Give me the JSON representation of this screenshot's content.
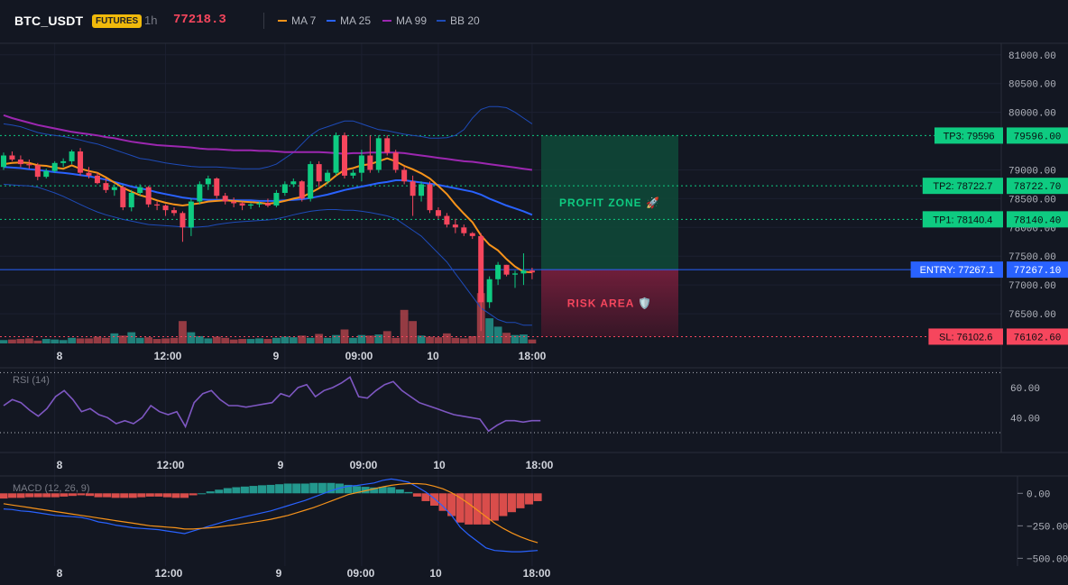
{
  "header": {
    "symbol": "BTC_USDT",
    "market_badge": "FUTURES",
    "timeframe": "1h",
    "last_price": "77218.3",
    "legends": [
      {
        "name": "MA 7",
        "color": "#f7931a"
      },
      {
        "name": "MA 25",
        "color": "#2962ff"
      },
      {
        "name": "MA 99",
        "color": "#9c27b0"
      },
      {
        "name": "BB 20",
        "color": "#1e4bb8"
      }
    ]
  },
  "colors": {
    "background": "#131722",
    "up": "#0ecb81",
    "down": "#f6465d",
    "up_volume": "#26a69a",
    "down_volume": "#c2484f",
    "profit": "#0ecb81",
    "loss": "#f6465d",
    "entry": "#2962ff",
    "rsi": "#7e57c2",
    "macd": "#2962ff",
    "signal": "#f7931a",
    "hist_pos": "#26a69a",
    "hist_neg": "#ef5350"
  },
  "x_labels": [
    "8",
    "12:00",
    "9",
    "09:00",
    "10",
    "18:00"
  ],
  "price_axis": {
    "ticks": [
      "81000.00",
      "80500.00",
      "80000.00",
      "79000.00",
      "78500.00",
      "78000.00",
      "77500.00",
      "77000.00",
      "76500.00"
    ],
    "ylim": [
      76000,
      81200
    ]
  },
  "zones": {
    "profit_label": "PROFIT ZONE 🚀",
    "risk_label": "RISK AREA 🛡️"
  },
  "levels": [
    {
      "kind": "tp3",
      "label": "TP3: 79596",
      "value_label": "79596.00",
      "price": 79596
    },
    {
      "kind": "tp2",
      "label": "TP2: 78722.7",
      "value_label": "78722.70",
      "price": 78722.7
    },
    {
      "kind": "tp1",
      "label": "TP1: 78140.4",
      "value_label": "78140.40",
      "price": 78140.4
    },
    {
      "kind": "entry",
      "label": "ENTRY: 77267.1",
      "value_label": "77267.10",
      "price": 77267.1
    },
    {
      "kind": "sl",
      "label": "SL: 76102.6",
      "value_label": "76102.60",
      "price": 76102.6
    }
  ],
  "rsi": {
    "title": "RSI (14)",
    "ticks": [
      "60.00",
      "40.00"
    ],
    "levels": [
      70,
      30
    ],
    "ylim": [
      18,
      72
    ]
  },
  "macd": {
    "title": "MACD (12, 26, 9)",
    "ticks": [
      "0.00",
      "−250.00",
      "−500.00"
    ],
    "ylim": [
      -560,
      120
    ]
  },
  "chart_data": {
    "type": "candlestick",
    "candles": [
      [
        79050,
        79300,
        79000,
        79250
      ],
      [
        79250,
        79320,
        79150,
        79180
      ],
      [
        79180,
        79250,
        79050,
        79100
      ],
      [
        79100,
        79180,
        79020,
        79080
      ],
      [
        79080,
        79120,
        78820,
        78880
      ],
      [
        78880,
        79020,
        78850,
        78980
      ],
      [
        78980,
        79150,
        78950,
        79120
      ],
      [
        79120,
        79200,
        79050,
        79150
      ],
      [
        79150,
        79350,
        79100,
        79320
      ],
      [
        79320,
        79380,
        78900,
        78950
      ],
      [
        78950,
        79050,
        78850,
        78900
      ],
      [
        78900,
        78950,
        78750,
        78770
      ],
      [
        78770,
        78850,
        78600,
        78650
      ],
      [
        78650,
        78750,
        78550,
        78700
      ],
      [
        78700,
        78720,
        78300,
        78350
      ],
      [
        78350,
        78650,
        78280,
        78600
      ],
      [
        78600,
        78750,
        78550,
        78700
      ],
      [
        78700,
        78720,
        78350,
        78400
      ],
      [
        78400,
        78450,
        78300,
        78380
      ],
      [
        78380,
        78400,
        78200,
        78300
      ],
      [
        78300,
        78350,
        78200,
        78250
      ],
      [
        78250,
        78280,
        77750,
        78000
      ],
      [
        78000,
        78500,
        77850,
        78450
      ],
      [
        78450,
        78800,
        78400,
        78750
      ],
      [
        78750,
        78900,
        78650,
        78850
      ],
      [
        78850,
        78870,
        78500,
        78550
      ],
      [
        78550,
        78600,
        78400,
        78450
      ],
      [
        78450,
        78520,
        78350,
        78420
      ],
      [
        78420,
        78450,
        78300,
        78380
      ],
      [
        78380,
        78420,
        78320,
        78400
      ],
      [
        78400,
        78450,
        78350,
        78420
      ],
      [
        78420,
        78500,
        78350,
        78380
      ],
      [
        78380,
        78650,
        78350,
        78600
      ],
      [
        78600,
        78800,
        78550,
        78750
      ],
      [
        78750,
        78850,
        78700,
        78800
      ],
      [
        78800,
        78820,
        78450,
        78500
      ],
      [
        78500,
        79150,
        78450,
        79100
      ],
      [
        79100,
        79150,
        78700,
        78800
      ],
      [
        78800,
        79000,
        78750,
        78950
      ],
      [
        78950,
        79650,
        78900,
        79600
      ],
      [
        79600,
        79650,
        78850,
        78900
      ],
      [
        78900,
        79000,
        78850,
        78950
      ],
      [
        78950,
        79350,
        78800,
        79250
      ],
      [
        79250,
        79600,
        78950,
        79000
      ],
      [
        79000,
        79600,
        78950,
        79550
      ],
      [
        79550,
        79600,
        79250,
        79300
      ],
      [
        79300,
        79350,
        78950,
        79000
      ],
      [
        79000,
        79050,
        78750,
        78800
      ],
      [
        78800,
        78900,
        78200,
        78550
      ],
      [
        78550,
        78800,
        78450,
        78750
      ],
      [
        78750,
        78800,
        78250,
        78300
      ],
      [
        78300,
        78350,
        78150,
        78200
      ],
      [
        78200,
        78250,
        78000,
        78050
      ],
      [
        78050,
        78150,
        77900,
        78000
      ],
      [
        78000,
        78050,
        77850,
        77900
      ],
      [
        77900,
        77920,
        77800,
        77850
      ],
      [
        77850,
        77900,
        76200,
        76700
      ],
      [
        76700,
        77150,
        76600,
        77100
      ],
      [
        77100,
        77400,
        77000,
        77350
      ],
      [
        77350,
        77350,
        77150,
        77180
      ],
      [
        77180,
        77250,
        76950,
        77200
      ],
      [
        77200,
        77550,
        77000,
        77250
      ],
      [
        77250,
        77300,
        77100,
        77218
      ]
    ],
    "volume": [
      6,
      7,
      8,
      9,
      5,
      8,
      7,
      6,
      10,
      9,
      9,
      12,
      10,
      18,
      14,
      20,
      10,
      11,
      8,
      9,
      10,
      40,
      20,
      13,
      9,
      12,
      10,
      7,
      8,
      8,
      9,
      8,
      10,
      12,
      11,
      14,
      10,
      17,
      10,
      15,
      25,
      10,
      15,
      14,
      16,
      22,
      10,
      60,
      40,
      14,
      12,
      11,
      18,
      10,
      9,
      13,
      90,
      45,
      30,
      19,
      15,
      16,
      7
    ],
    "series": [
      {
        "name": "MA 7",
        "values": [
          79100,
          79120,
          79130,
          79120,
          79080,
          79070,
          79040,
          79020,
          79080,
          79020,
          78980,
          78950,
          78870,
          78780,
          78690,
          78620,
          78560,
          78520,
          78470,
          78430,
          78400,
          78380,
          78400,
          78420,
          78450,
          78460,
          78470,
          78460,
          78450,
          78440,
          78430,
          78410,
          78430,
          78460,
          78500,
          78530,
          78600,
          78680,
          78780,
          78900,
          79000,
          79030,
          79080,
          79100,
          79150,
          79200,
          79150,
          79070,
          79010,
          78940,
          78850,
          78720,
          78580,
          78400,
          78240,
          78090,
          77860,
          77700,
          77600,
          77450,
          77320,
          77230,
          77220
        ]
      },
      {
        "name": "MA 25",
        "values": [
          79050,
          79040,
          79030,
          79010,
          79000,
          78980,
          78960,
          78950,
          78930,
          78910,
          78890,
          78860,
          78830,
          78790,
          78750,
          78710,
          78680,
          78650,
          78610,
          78580,
          78550,
          78520,
          78500,
          78490,
          78480,
          78480,
          78480,
          78470,
          78470,
          78470,
          78460,
          78460,
          78460,
          78470,
          78480,
          78490,
          78510,
          78540,
          78570,
          78610,
          78650,
          78680,
          78710,
          78740,
          78770,
          78790,
          78820,
          78820,
          78800,
          78780,
          78760,
          78740,
          78710,
          78680,
          78650,
          78620,
          78570,
          78500,
          78440,
          78380,
          78330,
          78280,
          78220
        ]
      },
      {
        "name": "MA 99",
        "values": [
          79950,
          79900,
          79860,
          79820,
          79780,
          79750,
          79720,
          79690,
          79660,
          79640,
          79620,
          79600,
          79570,
          79550,
          79520,
          79490,
          79470,
          79450,
          79430,
          79420,
          79410,
          79400,
          79390,
          79370,
          79360,
          79360,
          79350,
          79340,
          79340,
          79340,
          79330,
          79330,
          79320,
          79310,
          79310,
          79310,
          79310,
          79310,
          79300,
          79290,
          79280,
          79290,
          79290,
          79300,
          79300,
          79300,
          79300,
          79290,
          79270,
          79250,
          79230,
          79210,
          79190,
          79170,
          79150,
          79140,
          79120,
          79100,
          79080,
          79060,
          79040,
          79020,
          79000
        ]
      },
      {
        "name": "BB 20",
        "values": [
          79800,
          79780,
          79750,
          79700,
          79650,
          79620,
          79600,
          79580,
          79550,
          79520,
          79480,
          79450,
          79400,
          79350,
          79300,
          79250,
          79200,
          79180,
          79150,
          79120,
          79100,
          79080,
          79060,
          79050,
          79050,
          79050,
          79040,
          79030,
          79020,
          79020,
          79020,
          79050,
          79100,
          79200,
          79300,
          79450,
          79600,
          79700,
          79750,
          79800,
          79850,
          79850,
          79800,
          79750,
          79700,
          79680,
          79650,
          79620,
          79600,
          79580,
          79550,
          79550,
          79560,
          79600,
          79700,
          79900,
          80050,
          80100,
          80100,
          80080,
          80000,
          79900,
          79800
        ]
      },
      {
        "name": "BB 20 lower",
        "values": [
          78750,
          78740,
          78730,
          78720,
          78700,
          78650,
          78600,
          78540,
          78470,
          78400,
          78330,
          78270,
          78220,
          78180,
          78140,
          78110,
          78080,
          78050,
          78040,
          78030,
          78020,
          78010,
          78000,
          78010,
          78020,
          78050,
          78070,
          78090,
          78100,
          78110,
          78120,
          78130,
          78150,
          78180,
          78220,
          78250,
          78280,
          78300,
          78310,
          78310,
          78300,
          78300,
          78280,
          78260,
          78230,
          78200,
          78150,
          78050,
          77950,
          77850,
          77700,
          77550,
          77400,
          77200,
          77000,
          76800,
          76600,
          76500,
          76400,
          76350,
          76350,
          76300,
          76300
        ]
      },
      {
        "name": "RSI (14)",
        "values": [
          48,
          52,
          50,
          45,
          41,
          46,
          54,
          58,
          52,
          44,
          46,
          42,
          40,
          36,
          38,
          36,
          40,
          48,
          44,
          42,
          44,
          34,
          50,
          56,
          58,
          52,
          48,
          48,
          47,
          48,
          49,
          50,
          56,
          54,
          60,
          62,
          54,
          58,
          60,
          63,
          67,
          54,
          53,
          58,
          62,
          64,
          58,
          54,
          50,
          48,
          46,
          44,
          42,
          41,
          40,
          39,
          31,
          35,
          38,
          38,
          37,
          38,
          38
        ]
      },
      {
        "name": "MACD",
        "values": [
          -120,
          -125,
          -135,
          -140,
          -150,
          -160,
          -170,
          -175,
          -180,
          -185,
          -200,
          -220,
          -230,
          -245,
          -255,
          -265,
          -270,
          -275,
          -280,
          -290,
          -300,
          -310,
          -290,
          -270,
          -250,
          -230,
          -210,
          -195,
          -180,
          -165,
          -150,
          -135,
          -115,
          -95,
          -75,
          -55,
          -30,
          -5,
          20,
          40,
          55,
          60,
          70,
          80,
          100,
          110,
          100,
          85,
          50,
          10,
          -40,
          -100,
          -170,
          -260,
          -320,
          -370,
          -420,
          -440,
          -445,
          -450,
          -450,
          -445,
          -440
        ]
      },
      {
        "name": "Signal",
        "values": [
          -80,
          -90,
          -100,
          -110,
          -120,
          -130,
          -140,
          -150,
          -160,
          -170,
          -180,
          -190,
          -200,
          -210,
          -220,
          -230,
          -240,
          -250,
          -255,
          -260,
          -265,
          -275,
          -275,
          -270,
          -265,
          -258,
          -250,
          -242,
          -232,
          -222,
          -212,
          -200,
          -185,
          -170,
          -150,
          -130,
          -110,
          -85,
          -60,
          -35,
          -10,
          5,
          20,
          35,
          50,
          62,
          70,
          75,
          75,
          70,
          55,
          35,
          5,
          -35,
          -80,
          -130,
          -180,
          -230,
          -270,
          -305,
          -335,
          -360,
          -380
        ]
      },
      {
        "name": "Histogram",
        "values": [
          -40,
          -35,
          -35,
          -30,
          -30,
          -30,
          -30,
          -25,
          -20,
          -15,
          -20,
          -30,
          -30,
          -35,
          -35,
          -35,
          -30,
          -25,
          -25,
          -30,
          -35,
          -35,
          -15,
          0,
          15,
          28,
          40,
          47,
          52,
          57,
          62,
          65,
          70,
          75,
          75,
          75,
          80,
          80,
          80,
          75,
          65,
          55,
          50,
          45,
          50,
          48,
          30,
          10,
          -25,
          -60,
          -95,
          -135,
          -175,
          -225,
          -240,
          -240,
          -240,
          -210,
          -175,
          -145,
          -115,
          -85,
          -60
        ]
      }
    ]
  }
}
